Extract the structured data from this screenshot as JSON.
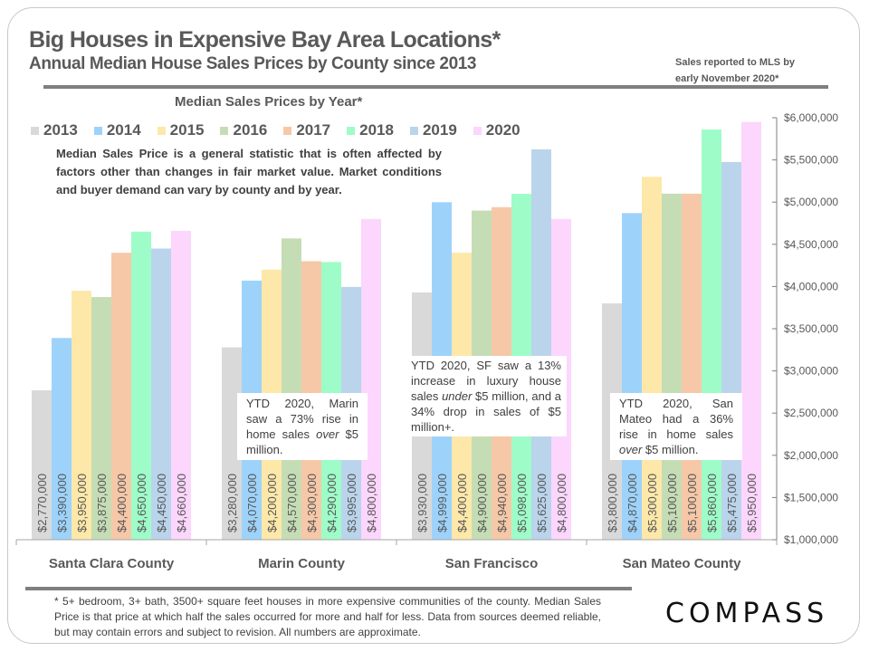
{
  "header": {
    "title": "Big Houses in Expensive Bay Area Locations*",
    "subtitle": "Annual Median House Sales Prices by County since 2013",
    "note_line1": "Sales reported to MLS by",
    "note_line2": "early November 2020*"
  },
  "disclaimer": "Median Sales Price is a general statistic that is often affected by factors other than changes in fair market value. Market conditions and buyer demand can vary by county and by year.",
  "callouts": {
    "marin": {
      "pre": "YTD 2020, Marin saw a 73% rise in home sales ",
      "em": "over",
      "post": " $5 million."
    },
    "sf": {
      "pre": "YTD 2020, SF saw a 13% increase in luxury house sales ",
      "em": "under",
      "post": " $5 million, and a 34% drop in sales of $5 million+."
    },
    "sanmateo": {
      "pre": "YTD 2020, San Mateo had a 36% rise in home sales ",
      "em": "over",
      "post": " $5 million."
    }
  },
  "footnote": "* 5+ bedroom, 3+ bath, 3500+ square feet houses in more expensive communities of the county. Median Sales Price is that price at which half the sales occurred for more and half for less. Data from sources deemed reliable, but may contain errors and subject to revision.  All numbers are approximate.",
  "logo": "COMPASS",
  "chart_data": {
    "type": "bar",
    "title": "Median Sales Prices by Year*",
    "xlabel": "",
    "ylabel": "",
    "ylim": [
      1000000,
      6000000
    ],
    "yticks": [
      1000000,
      1500000,
      2000000,
      2500000,
      3000000,
      3500000,
      4000000,
      4500000,
      5000000,
      5500000,
      6000000
    ],
    "ytick_labels": [
      "$1,000,000",
      "$1,500,000",
      "$2,000,000",
      "$2,500,000",
      "$3,000,000",
      "$3,500,000",
      "$4,000,000",
      "$4,500,000",
      "$5,000,000",
      "$5,500,000",
      "$6,000,000"
    ],
    "y_axis_side": "right",
    "grid": false,
    "legend_placement": "top",
    "categories": [
      "Santa Clara County",
      "Marin County",
      "San Francisco",
      "San Mateo County"
    ],
    "series": [
      {
        "name": "2013",
        "color": "#d9d9d9",
        "values": [
          2770000,
          3280000,
          3930000,
          3800000
        ],
        "labels": [
          "$2,770,000",
          "$3,280,000",
          "$3,930,000",
          "$3,800,000"
        ]
      },
      {
        "name": "2014",
        "color": "#9dd3fb",
        "values": [
          3390000,
          4070000,
          4999000,
          4870000
        ],
        "labels": [
          "$3,390,000",
          "$4,070,000",
          "$4,999,000",
          "$4,870,000"
        ]
      },
      {
        "name": "2015",
        "color": "#fde8a9",
        "values": [
          3950000,
          4200000,
          4400000,
          5300000
        ],
        "labels": [
          "$3,950,000",
          "$4,200,000",
          "$4,400,000",
          "$5,300,000"
        ]
      },
      {
        "name": "2016",
        "color": "#c5ddb5",
        "values": [
          3875000,
          4570000,
          4900000,
          5100000
        ],
        "labels": [
          "$3,875,000",
          "$4,570,000",
          "$4,900,000",
          "$5,100,000"
        ]
      },
      {
        "name": "2017",
        "color": "#f6c8a8",
        "values": [
          4400000,
          4300000,
          4940000,
          5100000
        ],
        "labels": [
          "$4,400,000",
          "$4,300,000",
          "$4,940,000",
          "$5,100,000"
        ]
      },
      {
        "name": "2018",
        "color": "#9efcc8",
        "values": [
          4650000,
          4290000,
          5098000,
          5860000
        ],
        "labels": [
          "$4,650,000",
          "$4,290,000",
          "$5,098,000",
          "$5,860,000"
        ]
      },
      {
        "name": "2019",
        "color": "#bad4ec",
        "values": [
          4450000,
          3995000,
          5625000,
          5475000
        ],
        "labels": [
          "$4,450,000",
          "$3,995,000",
          "$5,625,000",
          "$5,475,000"
        ]
      },
      {
        "name": "2020",
        "color": "#fcd6fc",
        "values": [
          4660000,
          4800000,
          4800000,
          5950000
        ],
        "labels": [
          "$4,660,000",
          "$4,800,000",
          "$4,800,000",
          "$5,950,000"
        ]
      }
    ]
  }
}
